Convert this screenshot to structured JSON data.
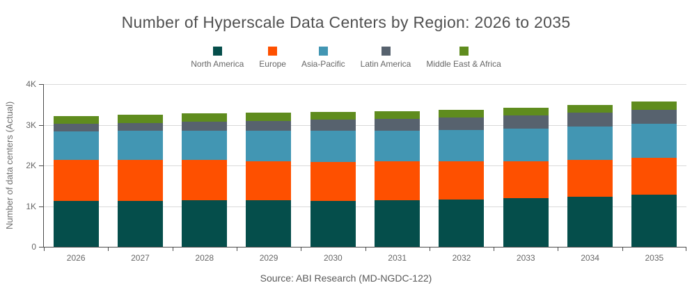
{
  "source": "Source: ABI Research (MD-NGDC-122)",
  "axis_color": "#4a4a4a",
  "gridline_color": "#d9d9d9",
  "chart_data": {
    "type": "bar",
    "stacked": true,
    "title": "Number of Hyperscale Data Centers by Region: 2026 to 2035",
    "ylabel": "Number of data centers (Actual)",
    "xlabel": "",
    "ylim": [
      0,
      4000
    ],
    "grid": "horizontal",
    "legend_position": "top",
    "yticks": [
      {
        "value": 0,
        "label": "0"
      },
      {
        "value": 1000,
        "label": "1K"
      },
      {
        "value": 2000,
        "label": "2K"
      },
      {
        "value": 3000,
        "label": "3K"
      },
      {
        "value": 4000,
        "label": "4K"
      }
    ],
    "categories": [
      "2026",
      "2027",
      "2028",
      "2029",
      "2030",
      "2031",
      "2032",
      "2033",
      "2034",
      "2035"
    ],
    "series": [
      {
        "name": "North America",
        "color": "#054e4b",
        "values": [
          1120,
          1130,
          1140,
          1140,
          1130,
          1150,
          1160,
          1200,
          1230,
          1280
        ]
      },
      {
        "name": "Europe",
        "color": "#fe5000",
        "values": [
          1020,
          1010,
          990,
          970,
          960,
          950,
          940,
          910,
          910,
          910
        ]
      },
      {
        "name": "Asia-Pacific",
        "color": "#4296b3",
        "values": [
          690,
          710,
          730,
          750,
          770,
          760,
          780,
          800,
          820,
          840
        ]
      },
      {
        "name": "Latin America",
        "color": "#57626e",
        "values": [
          190,
          200,
          210,
          240,
          270,
          290,
          300,
          320,
          340,
          330
        ]
      },
      {
        "name": "Middle East & Africa",
        "color": "#5f8c1e",
        "values": [
          200,
          200,
          210,
          200,
          180,
          180,
          180,
          190,
          190,
          220
        ]
      }
    ]
  }
}
